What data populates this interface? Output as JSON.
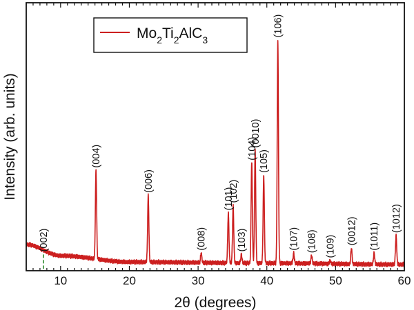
{
  "chart_data": {
    "type": "line",
    "title": "",
    "xlabel": "2θ (degrees)",
    "ylabel": "Intensity (arb. units)",
    "xlim": [
      5,
      60
    ],
    "ylim": [
      0,
      1.07
    ],
    "xticks": [
      10,
      20,
      30,
      40,
      50,
      60
    ],
    "yticks_shown": false,
    "grid": false,
    "legend": {
      "placement": "top-left",
      "entries": [
        {
          "formula_parts": [
            [
              "Mo",
              false
            ],
            [
              "2",
              true
            ],
            [
              "Ti",
              false
            ],
            [
              "2",
              true
            ],
            [
              "AlC",
              false
            ],
            [
              "3",
              true
            ]
          ],
          "color": "#cc1f1f"
        }
      ]
    },
    "series": [
      {
        "color": "#cc1f1f",
        "baseline": {
          "at_5": 0.105,
          "at_10": 0.06,
          "at_20": 0.035,
          "at_40": 0.03,
          "at_60": 0.025
        },
        "peaks": [
          {
            "hkl": "(002)",
            "x": 7.5,
            "y": 0.065,
            "marker": "dashed",
            "marker_color": "#2e8b2e"
          },
          {
            "hkl": "(004)",
            "x": 15.15,
            "y": 0.4
          },
          {
            "hkl": "(006)",
            "x": 22.75,
            "y": 0.3
          },
          {
            "hkl": "(008)",
            "x": 30.45,
            "y": 0.07
          },
          {
            "hkl": "(101)",
            "x": 34.4,
            "y": 0.23
          },
          {
            "hkl": "(102)",
            "x": 35.1,
            "y": 0.26
          },
          {
            "hkl": "(103)",
            "x": 36.3,
            "y": 0.065
          },
          {
            "hkl": "(104)",
            "x": 37.8,
            "y": 0.43
          },
          {
            "hkl": "(0010)",
            "x": 38.3,
            "y": 0.48
          },
          {
            "hkl": "(105)",
            "x": 39.55,
            "y": 0.38
          },
          {
            "hkl": "(106)",
            "x": 41.6,
            "y": 0.92
          },
          {
            "hkl": "(107)",
            "x": 43.9,
            "y": 0.07
          },
          {
            "hkl": "(108)",
            "x": 46.5,
            "y": 0.06
          },
          {
            "hkl": "(109)",
            "x": 49.2,
            "y": 0.04
          },
          {
            "hkl": "(0012)",
            "x": 52.3,
            "y": 0.09
          },
          {
            "hkl": "(1011)",
            "x": 55.6,
            "y": 0.07
          },
          {
            "hkl": "(1012)",
            "x": 58.8,
            "y": 0.14
          }
        ]
      }
    ]
  }
}
